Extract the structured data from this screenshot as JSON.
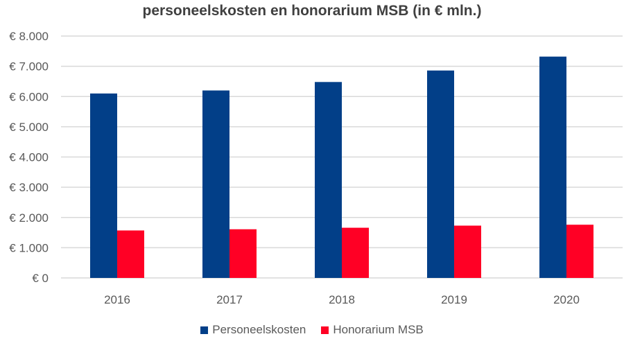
{
  "chart_data": {
    "type": "bar",
    "title": "personeelskosten en honorarium MSB (in € mln.)",
    "categories": [
      "2016",
      "2017",
      "2018",
      "2019",
      "2020"
    ],
    "series": [
      {
        "name": "Personeelskosten",
        "color": "#023F88",
        "values": [
          6100,
          6200,
          6480,
          6860,
          7320
        ]
      },
      {
        "name": "Honorarium MSB",
        "color": "#FF0025",
        "values": [
          1570,
          1610,
          1660,
          1730,
          1760
        ]
      }
    ],
    "ylim": [
      0,
      8000
    ],
    "yticks": [
      0,
      1000,
      2000,
      3000,
      4000,
      5000,
      6000,
      7000,
      8000
    ],
    "ytick_labels": [
      "€ 0",
      "€ 1.000",
      "€ 2.000",
      "€ 3.000",
      "€ 4.000",
      "€ 5.000",
      "€ 6.000",
      "€ 7.000",
      "€ 8.000"
    ],
    "grid": true,
    "legend_position": "bottom"
  }
}
